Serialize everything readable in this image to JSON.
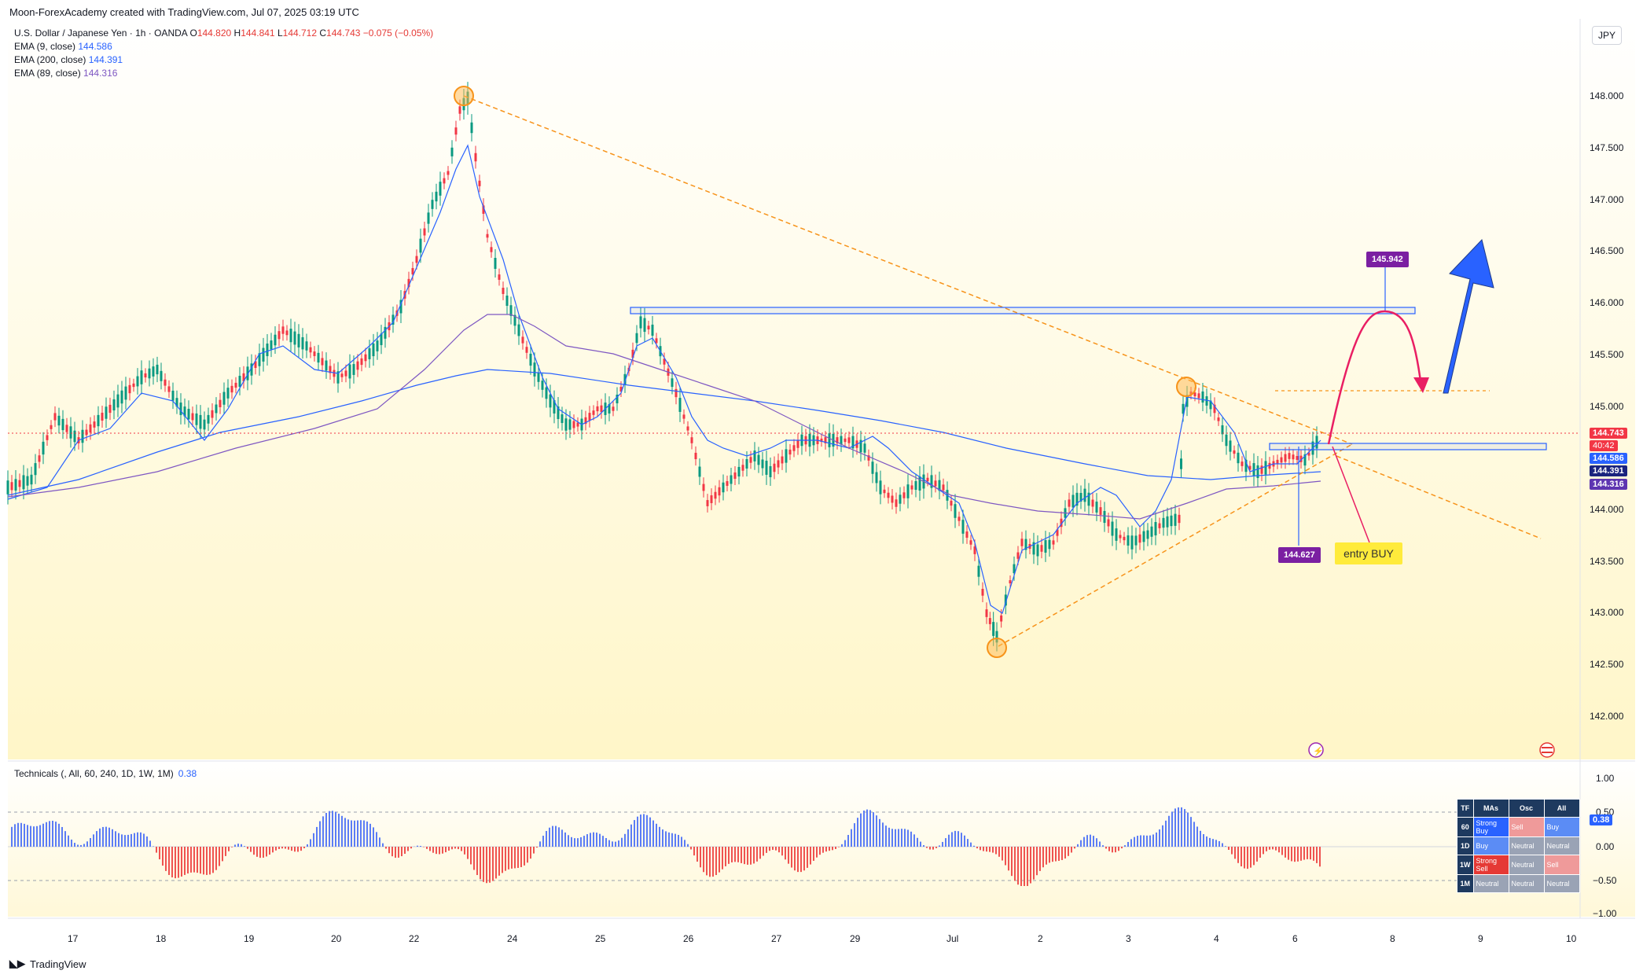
{
  "header": {
    "credit": "Moon-ForexAcademy created with TradingView.com, Jul 07, 2025 03:19 UTC",
    "symbol_line": "U.S. Dollar / Japanese Yen · 1h · OANDA",
    "open_label": "O",
    "open": "144.820",
    "high_label": "H",
    "high": "144.841",
    "low_label": "L",
    "low": "144.712",
    "close_label": "C",
    "close": "144.743",
    "change": "−0.075 (−0.05%)"
  },
  "indicators": [
    {
      "label": "EMA (9, close)",
      "value": "144.586"
    },
    {
      "label": "EMA (200, close)",
      "value": "144.391"
    },
    {
      "label": "EMA (89, close)",
      "value": "144.316"
    }
  ],
  "currency": "JPY",
  "price_axis": [
    "148.000",
    "147.500",
    "147.000",
    "146.500",
    "146.000",
    "145.500",
    "145.000",
    "144.500",
    "144.000",
    "143.500",
    "143.000",
    "142.500",
    "142.000"
  ],
  "time_axis": [
    "17",
    "18",
    "19",
    "20",
    "22",
    "24",
    "25",
    "26",
    "27",
    "29",
    "Jul",
    "2",
    "3",
    "4",
    "6",
    "8",
    "9",
    "10"
  ],
  "price_tags": {
    "last": "144.743",
    "countdown": "40:42",
    "ema9": "144.586",
    "ema200": "144.391",
    "ema89": "144.316"
  },
  "annotations": {
    "target": "145.942",
    "low_marker": "144.627",
    "entry": "entry BUY"
  },
  "technicals": {
    "title": "Technicals (, All, 60, 240, 1D, 1W, 1M)",
    "value": "0.38",
    "axis": [
      "1.00",
      "0.50",
      "0.00",
      "−0.50",
      "−1.00"
    ],
    "tag": "0.38",
    "table_headers": [
      "TF",
      "MAs",
      "Osc",
      "All"
    ],
    "table_rows": [
      {
        "tf": "60",
        "mas": "Strong Buy",
        "osc": "Sell",
        "all": "Buy"
      },
      {
        "tf": "1D",
        "mas": "Buy",
        "osc": "Neutral",
        "all": "Neutral"
      },
      {
        "tf": "1W",
        "mas": "Strong Sell",
        "osc": "Neutral",
        "all": "Sell"
      },
      {
        "tf": "1M",
        "mas": "Neutral",
        "osc": "Neutral",
        "all": "Neutral"
      }
    ]
  },
  "brand": "TradingView",
  "colors": {
    "up": "#089981",
    "down": "#f23645",
    "ema9": "#2962ff",
    "ema200": "#2962ff",
    "ema89": "#7e57c2",
    "trend": "#f7931a",
    "zone": "#2962ff",
    "arrow_blue": "#2962ff",
    "arrow_pink": "#e91e63",
    "tag_purple": "#7b1fa2"
  }
}
